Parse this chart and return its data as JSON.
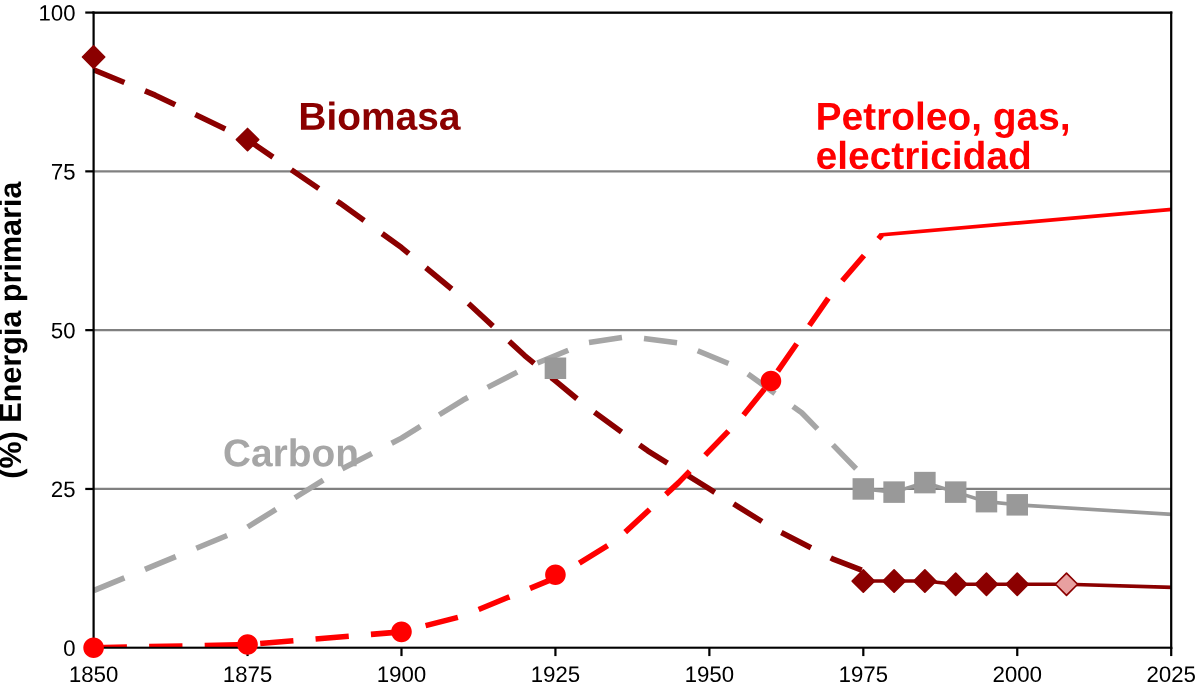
{
  "chart_data": {
    "type": "line",
    "ylabel": "(%) Energia primaria",
    "xlim": [
      1850,
      2025
    ],
    "xticks": [
      1850,
      1875,
      1900,
      1925,
      1950,
      1975,
      2000,
      2025
    ],
    "ylim": [
      0,
      100
    ],
    "yticks": [
      0,
      25,
      50,
      75,
      100
    ],
    "grid": "y",
    "legend": false,
    "series": [
      {
        "name": "Biomasa",
        "line_style": "dashed",
        "color": "#8b0000",
        "x": [
          1850,
          1860,
          1875,
          1890,
          1900,
          1910,
          1920,
          1925,
          1930,
          1940,
          1950,
          1960,
          1970,
          1978
        ],
        "values": [
          91,
          87,
          80,
          70,
          63,
          55,
          46,
          42,
          38,
          31,
          25,
          19,
          14,
          11
        ]
      },
      {
        "type": "scatter",
        "marker": "diamond",
        "color": "#8b0000",
        "colors": [
          "#8b0000",
          "#8b0000",
          "#8b0000",
          "#8b0000",
          "#8b0000",
          "#8b0000",
          "#8b0000",
          "#8b0000",
          "#e8a0a0"
        ],
        "x": [
          1850,
          1875,
          1975,
          1980,
          1985,
          1990,
          1995,
          2000,
          2008
        ],
        "values": [
          93,
          80,
          10.5,
          10.5,
          10.5,
          10,
          10,
          10,
          10
        ]
      },
      {
        "line_style": "solid",
        "color": "#8b0000",
        "x": [
          1975,
          1980,
          1985,
          1990,
          1995,
          2000,
          2008,
          2025
        ],
        "values": [
          10.5,
          10.5,
          10.5,
          10,
          10,
          10,
          10,
          9.5
        ]
      },
      {
        "name": "Carbon",
        "line_style": "dashed",
        "color": "#a6a6a6",
        "x": [
          1850,
          1860,
          1875,
          1890,
          1900,
          1910,
          1920,
          1930,
          1937,
          1945,
          1955,
          1965,
          1970,
          1976
        ],
        "values": [
          9,
          13,
          19,
          28,
          33,
          39,
          44,
          48,
          49,
          48,
          44,
          37,
          32,
          26
        ]
      },
      {
        "type": "scatter",
        "marker": "square",
        "color": "#999999",
        "x": [
          1925,
          1975,
          1980,
          1985,
          1990,
          1995,
          2000
        ],
        "values": [
          44,
          25,
          24.5,
          26,
          24.5,
          23,
          22.5
        ]
      },
      {
        "line_style": "solid",
        "color": "#999999",
        "x": [
          1975,
          1980,
          1985,
          1990,
          1995,
          2000,
          2025
        ],
        "values": [
          25,
          24.5,
          26,
          24.5,
          23,
          22.5,
          21
        ]
      },
      {
        "name": "Petroleo, gas, electricidad",
        "line_style": "dashed",
        "color": "#ff0000",
        "x": [
          1850,
          1875,
          1900,
          1910,
          1925,
          1935,
          1945,
          1955,
          1960,
          1965,
          1970,
          1978
        ],
        "values": [
          0,
          0.5,
          2.5,
          5,
          11,
          17,
          26,
          36,
          42,
          49,
          56,
          65
        ]
      },
      {
        "type": "scatter",
        "marker": "circle",
        "color": "#ff0000",
        "x": [
          1850,
          1875,
          1900,
          1925,
          1960
        ],
        "values": [
          0,
          0.5,
          2.5,
          11.5,
          42
        ]
      },
      {
        "line_style": "solid",
        "color": "#ff0000",
        "x": [
          1978,
          2025
        ],
        "values": [
          65,
          69
        ]
      }
    ]
  }
}
